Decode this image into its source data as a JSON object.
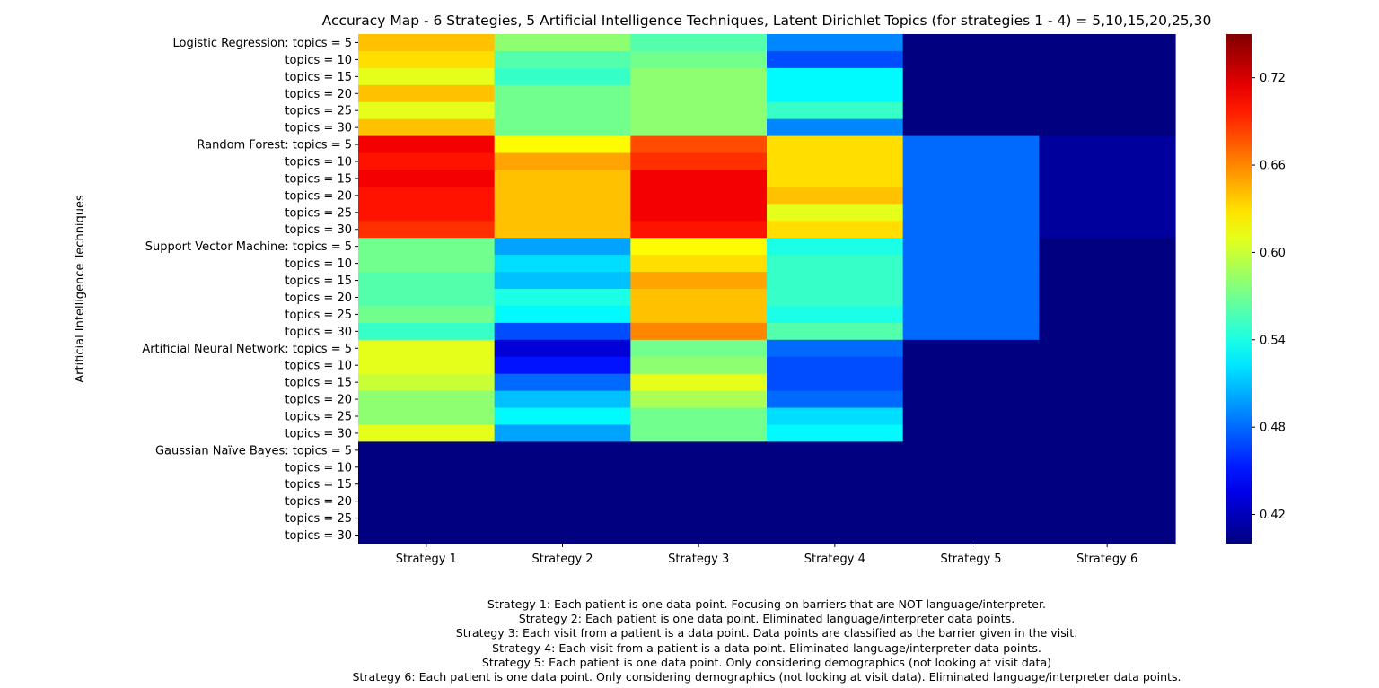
{
  "chart_data": {
    "type": "heatmap",
    "title": "Accuracy Map - 6 Strategies, 5 Artificial Intelligence Techniques, Latent Dirichlet Topics (for strategies 1 - 4) = 5,10,15,20,25,30",
    "ylabel": "Artificial Intelligence Techniques",
    "xlabel": "",
    "x_categories": [
      "Strategy 1",
      "Strategy 2",
      "Strategy 3",
      "Strategy 4",
      "Strategy 5",
      "Strategy 6"
    ],
    "y_categories": [
      "Logistic Regression:  topics = 5",
      "topics = 10",
      "topics = 15",
      "topics = 20",
      "topics = 25",
      "topics = 30",
      "Random Forest:  topics = 5",
      "topics = 10",
      "topics = 15",
      "topics = 20",
      "topics = 25",
      "topics = 30",
      "Support Vector Machine:  topics = 5",
      "topics = 10",
      "topics = 15",
      "topics = 20",
      "topics = 25",
      "topics = 30",
      "Artificial Neural Network:  topics = 5",
      "topics = 10",
      "topics = 15",
      "topics = 20",
      "topics = 25",
      "topics = 30",
      "Gaussian Naïve Bayes:  topics = 5",
      "topics = 10",
      "topics = 15",
      "topics = 20",
      "topics = 25",
      "topics = 30"
    ],
    "values": [
      [
        0.64,
        0.58,
        0.56,
        0.49,
        0.4,
        0.4
      ],
      [
        0.63,
        0.56,
        0.57,
        0.47,
        0.4,
        0.4
      ],
      [
        0.61,
        0.55,
        0.58,
        0.53,
        0.4,
        0.4
      ],
      [
        0.64,
        0.57,
        0.58,
        0.53,
        0.4,
        0.4
      ],
      [
        0.61,
        0.57,
        0.58,
        0.55,
        0.4,
        0.4
      ],
      [
        0.64,
        0.57,
        0.58,
        0.49,
        0.4,
        0.4
      ],
      [
        0.71,
        0.62,
        0.68,
        0.63,
        0.48,
        0.41
      ],
      [
        0.7,
        0.65,
        0.69,
        0.63,
        0.48,
        0.41
      ],
      [
        0.71,
        0.64,
        0.71,
        0.63,
        0.48,
        0.41
      ],
      [
        0.7,
        0.64,
        0.71,
        0.64,
        0.48,
        0.41
      ],
      [
        0.7,
        0.64,
        0.71,
        0.61,
        0.48,
        0.41
      ],
      [
        0.69,
        0.64,
        0.7,
        0.63,
        0.48,
        0.41
      ],
      [
        0.57,
        0.5,
        0.62,
        0.54,
        0.48,
        0.4
      ],
      [
        0.57,
        0.52,
        0.63,
        0.55,
        0.48,
        0.4
      ],
      [
        0.56,
        0.51,
        0.65,
        0.55,
        0.48,
        0.4
      ],
      [
        0.56,
        0.54,
        0.64,
        0.55,
        0.48,
        0.4
      ],
      [
        0.57,
        0.53,
        0.64,
        0.54,
        0.48,
        0.4
      ],
      [
        0.55,
        0.47,
        0.66,
        0.56,
        0.48,
        0.4
      ],
      [
        0.61,
        0.43,
        0.57,
        0.48,
        0.4,
        0.4
      ],
      [
        0.61,
        0.45,
        0.58,
        0.47,
        0.4,
        0.4
      ],
      [
        0.6,
        0.48,
        0.61,
        0.47,
        0.4,
        0.4
      ],
      [
        0.58,
        0.51,
        0.59,
        0.48,
        0.4,
        0.4
      ],
      [
        0.58,
        0.53,
        0.57,
        0.52,
        0.4,
        0.4
      ],
      [
        0.61,
        0.5,
        0.57,
        0.53,
        0.4,
        0.4
      ],
      [
        0.4,
        0.4,
        0.4,
        0.4,
        0.4,
        0.4
      ],
      [
        0.4,
        0.4,
        0.4,
        0.4,
        0.4,
        0.4
      ],
      [
        0.4,
        0.4,
        0.4,
        0.4,
        0.4,
        0.4
      ],
      [
        0.4,
        0.4,
        0.4,
        0.4,
        0.4,
        0.4
      ],
      [
        0.4,
        0.4,
        0.4,
        0.4,
        0.4,
        0.4
      ],
      [
        0.4,
        0.4,
        0.4,
        0.4,
        0.4,
        0.4
      ]
    ],
    "colormap": "jet",
    "vmin": 0.4,
    "vmax": 0.75,
    "colorbar_ticks": [
      0.42,
      0.48,
      0.54,
      0.6,
      0.66,
      0.72
    ],
    "colorbar_tick_labels": [
      "0.42",
      "0.48",
      "0.54",
      "0.60",
      "0.66",
      "0.72"
    ],
    "grid": false,
    "legend": "colorbar-right"
  },
  "notes": [
    "Strategy 1:  Each patient is one data point.  Focusing on barriers that are NOT language/interpreter.",
    "Strategy 2:  Each patient is one data point.  Eliminated language/interpreter data points.",
    "Strategy 3:  Each visit from a patient is a data point.  Data points are classified as the barrier given in the visit.",
    "Strategy 4:  Each visit from a patient is a data point.  Eliminated language/interpreter data points.",
    "Strategy 5:  Each patient is one data point.  Only considering demographics (not looking at visit data)",
    "Strategy 6:  Each patient is one data point.  Only considering demographics (not looking at visit data).  Eliminated language/interpreter data points."
  ]
}
